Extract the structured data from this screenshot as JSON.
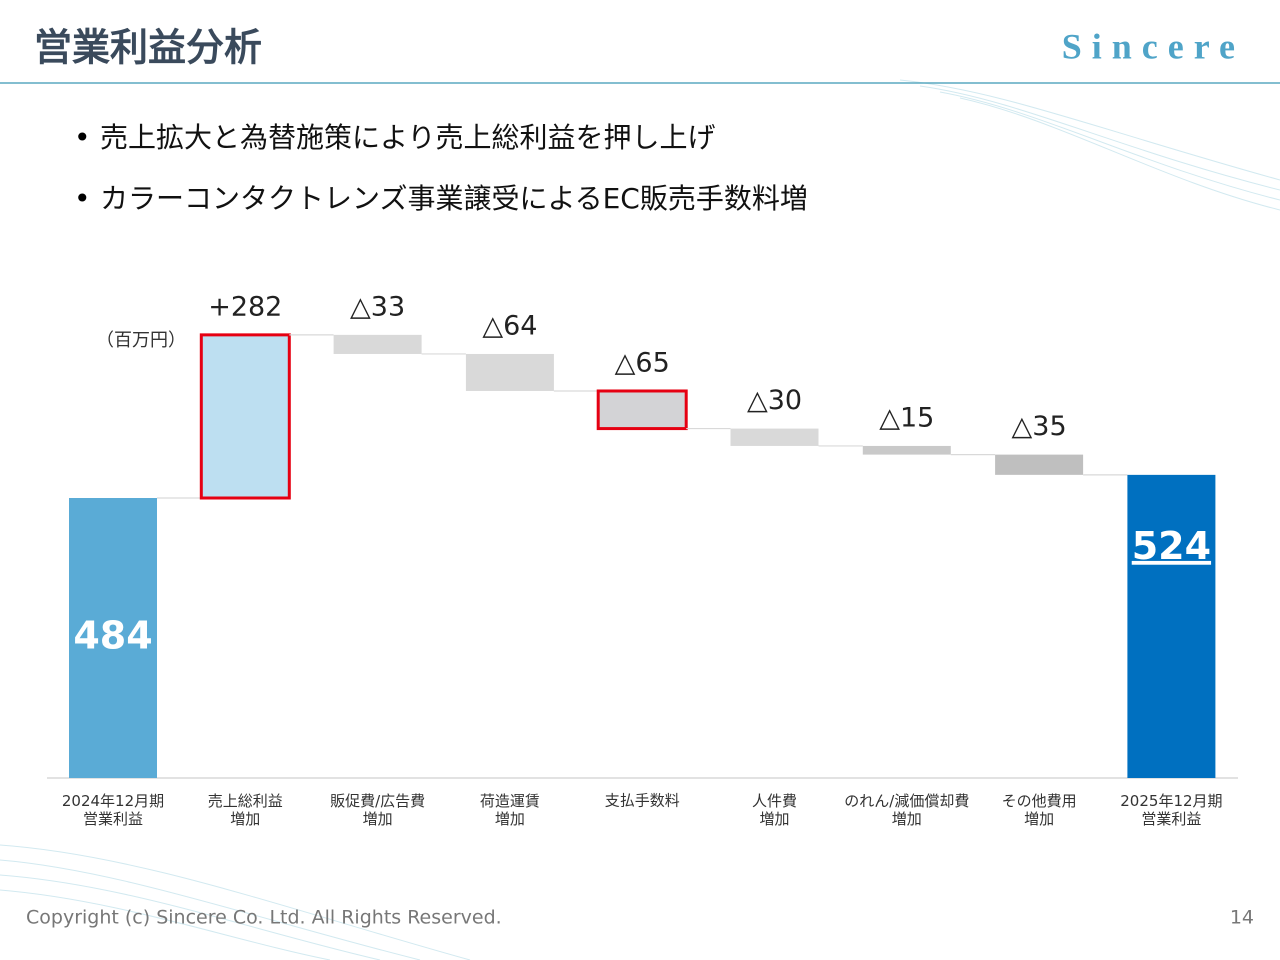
{
  "header": {
    "title": "営業利益分析",
    "logo": "Sincere"
  },
  "bullets": [
    "売上拡大と為替施策により売上総利益を押し上げ",
    "カラーコンタクトレンズ事業譲受によるEC販売手数料増"
  ],
  "chart_data": {
    "type": "waterfall",
    "unit_label": "（百万円）",
    "categories": [
      "2024年12月期\n営業利益",
      "売上総利益\n増加",
      "販促費/広告費\n増加",
      "荷造運賃\n増加",
      "支払手数料",
      "人件費\n増加",
      "のれん/減価償却費\n増加",
      "その他費用\n増加",
      "2025年12月期\n営業利益"
    ],
    "measure": [
      "absolute",
      "relative",
      "relative",
      "relative",
      "relative",
      "relative",
      "relative",
      "relative",
      "total"
    ],
    "values": [
      484,
      282,
      -33,
      -64,
      -65,
      -30,
      -15,
      -35,
      524
    ],
    "value_labels": [
      "484",
      "+282",
      "△33",
      "△64",
      "△65",
      "△30",
      "△15",
      "△35",
      "524"
    ],
    "colors": [
      "#5aabd6",
      "#bddff1",
      "#d9d9d9",
      "#d9d9d9",
      "#d3d3d6",
      "#d9d9d9",
      "#c9c9c9",
      "#bfbfbf",
      "#0070c0"
    ],
    "highlighted": [
      false,
      true,
      false,
      false,
      true,
      false,
      false,
      false,
      false
    ]
  },
  "footer": {
    "copyright": "Copyright (c) Sincere Co. Ltd. All Rights Reserved.",
    "page": "14"
  }
}
